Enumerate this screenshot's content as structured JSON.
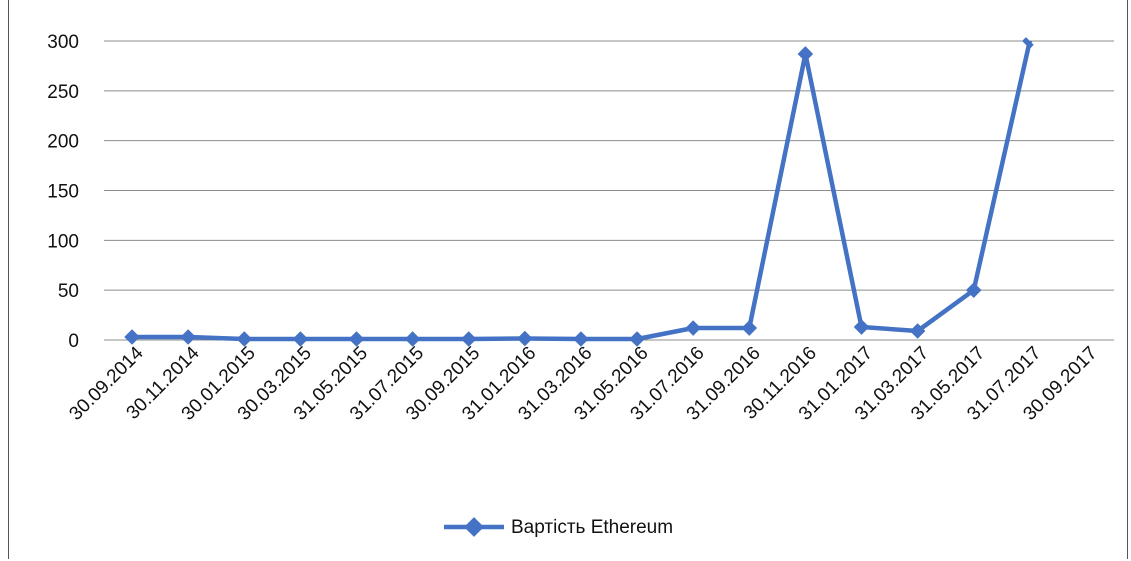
{
  "chart_data": {
    "type": "line",
    "title": "",
    "xlabel": "",
    "ylabel": "",
    "ylim": [
      0,
      300
    ],
    "yticks": [
      0,
      50,
      100,
      150,
      200,
      250,
      300
    ],
    "grid": true,
    "legend_position": "bottom",
    "x_categories": [
      "30.09.2014",
      "30.11.2014",
      "30.01.2015",
      "30.03.2015",
      "31.05.2015",
      "31.07.2015",
      "30.09.2015",
      "31.01.2016",
      "31.03.2016",
      "31.05.2016",
      "31.07.2016",
      "31.09.2016",
      "30.11.2016",
      "31.01.2017",
      "31.03.2017",
      "31.05.2017",
      "31.07.2017",
      "30.09.2017"
    ],
    "series": [
      {
        "name": "Вартість Ethereum",
        "color": "#4472c4",
        "values": [
          3,
          3,
          1,
          1,
          1,
          1,
          1,
          1.5,
          1,
          1,
          12,
          12,
          287,
          13,
          9,
          50,
          300,
          null
        ],
        "line_continues_above_axis_after_index": 16
      }
    ]
  }
}
